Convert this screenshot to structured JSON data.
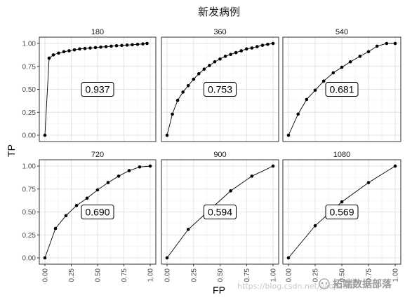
{
  "title": "新发病例",
  "chart_data": {
    "type": "line",
    "title": "新发病例",
    "xlabel": "FP",
    "ylabel": "TP",
    "xlim": [
      0,
      1
    ],
    "ylim": [
      0,
      1
    ],
    "x_ticks": [
      "0.00",
      "0.25",
      "0.50",
      "0.75",
      "1.00"
    ],
    "y_ticks": [
      "0.00",
      "0.25",
      "0.50",
      "0.75",
      "1.00"
    ],
    "grid": true,
    "facets": [
      {
        "label": "180",
        "auc": "0.937",
        "x": [
          0.0,
          0.04,
          0.08,
          0.13,
          0.18,
          0.23,
          0.28,
          0.33,
          0.38,
          0.43,
          0.48,
          0.53,
          0.58,
          0.63,
          0.68,
          0.73,
          0.78,
          0.83,
          0.88,
          0.93,
          0.97
        ],
        "y": [
          0.0,
          0.84,
          0.875,
          0.895,
          0.91,
          0.92,
          0.93,
          0.94,
          0.945,
          0.95,
          0.955,
          0.96,
          0.965,
          0.97,
          0.975,
          0.978,
          0.982,
          0.986,
          0.99,
          0.995,
          1.0
        ]
      },
      {
        "label": "360",
        "auc": "0.753",
        "x": [
          0.0,
          0.05,
          0.1,
          0.15,
          0.2,
          0.25,
          0.3,
          0.35,
          0.4,
          0.45,
          0.5,
          0.55,
          0.6,
          0.65,
          0.7,
          0.75,
          0.8,
          0.85,
          0.9,
          0.95,
          1.0
        ],
        "y": [
          0.0,
          0.23,
          0.38,
          0.47,
          0.54,
          0.61,
          0.67,
          0.72,
          0.76,
          0.8,
          0.83,
          0.86,
          0.88,
          0.9,
          0.92,
          0.94,
          0.95,
          0.965,
          0.98,
          0.99,
          1.0
        ]
      },
      {
        "label": "540",
        "auc": "0.681",
        "x": [
          0.0,
          0.09,
          0.17,
          0.25,
          0.33,
          0.42,
          0.5,
          0.58,
          0.67,
          0.75,
          0.83,
          0.92,
          1.0
        ],
        "y": [
          0.0,
          0.23,
          0.39,
          0.49,
          0.59,
          0.68,
          0.74,
          0.8,
          0.86,
          0.91,
          0.97,
          1.0,
          1.0
        ]
      },
      {
        "label": "720",
        "auc": "0.690",
        "x": [
          0.0,
          0.1,
          0.2,
          0.3,
          0.4,
          0.5,
          0.6,
          0.7,
          0.8,
          0.9,
          1.0
        ],
        "y": [
          0.0,
          0.32,
          0.46,
          0.57,
          0.65,
          0.74,
          0.82,
          0.89,
          0.95,
          0.99,
          1.0
        ]
      },
      {
        "label": "900",
        "auc": "0.594",
        "x": [
          0.0,
          0.2,
          0.4,
          0.6,
          0.8,
          1.0
        ],
        "y": [
          0.0,
          0.31,
          0.52,
          0.73,
          0.89,
          1.0
        ]
      },
      {
        "label": "1080",
        "auc": "0.569",
        "x": [
          0.0,
          0.25,
          0.5,
          0.75,
          1.0
        ],
        "y": [
          0.0,
          0.35,
          0.61,
          0.82,
          1.0
        ]
      }
    ]
  },
  "watermark": {
    "url_text": "https://blog.csdn.net/jiaojiaoren",
    "brand_text": "拓端数据部落"
  }
}
